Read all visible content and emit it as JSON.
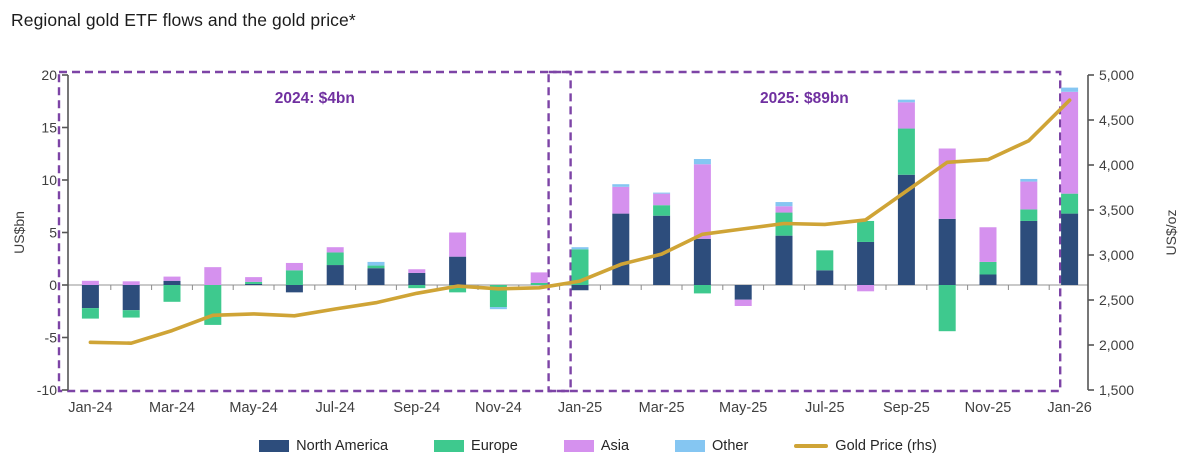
{
  "page": {
    "title": "Regional gold ETF flows and the gold price*"
  },
  "chart_data": {
    "type": "bar",
    "subtype": "stacked monthly bar chart with secondary-axis line overlay",
    "title": "Regional gold ETF flows and the gold price*",
    "categories": [
      "Jan-24",
      "Feb-24",
      "Mar-24",
      "Apr-24",
      "May-24",
      "Jun-24",
      "Jul-24",
      "Aug-24",
      "Sep-24",
      "Oct-24",
      "Nov-24",
      "Dec-24",
      "Jan-25",
      "Feb-25",
      "Mar-25",
      "Apr-25",
      "May-25",
      "Jun-25",
      "Jul-25",
      "Aug-25",
      "Sep-25",
      "Oct-25",
      "Nov-25",
      "Dec-25",
      "Jan-26"
    ],
    "x_labeled_ticks": [
      "Jan-24",
      "Mar-24",
      "May-24",
      "Jul-24",
      "Sep-24",
      "Nov-24",
      "Jan-25",
      "Mar-25",
      "May-25",
      "Jul-25",
      "Sep-25",
      "Nov-25",
      "Jan-26"
    ],
    "left_axis": {
      "label": "US$bn",
      "min": -10,
      "max": 20,
      "ticks": [
        "20",
        "15",
        "10",
        "5",
        "0",
        "-5",
        "-10"
      ]
    },
    "right_axis": {
      "label": "US$/oz",
      "min": 1500,
      "max": 5000,
      "ticks": [
        "5,000",
        "4,500",
        "4,000",
        "3,500",
        "3,000",
        "2,500",
        "2,000",
        "1,500"
      ]
    },
    "series": [
      {
        "name": "North America",
        "color": "#2d4d7c",
        "values": [
          -2.2,
          -2.4,
          0.4,
          0,
          0.1,
          -0.7,
          1.9,
          1.6,
          1.15,
          2.7,
          0,
          0,
          -0.5,
          6.8,
          6.6,
          4.4,
          -1.4,
          4.7,
          1.4,
          4.1,
          10.5,
          6.3,
          1.0,
          6.1,
          6.8
        ]
      },
      {
        "name": "Europe",
        "color": "#3ec98e",
        "values": [
          -1.0,
          -0.7,
          -1.6,
          -3.8,
          0.2,
          1.4,
          1.2,
          0.25,
          -0.3,
          -0.7,
          -2.1,
          0.2,
          3.4,
          0,
          1.0,
          -0.8,
          0,
          2.2,
          1.9,
          2.0,
          4.4,
          -4.4,
          1.2,
          1.1,
          1.9
        ]
      },
      {
        "name": "Asia",
        "color": "#d591ee",
        "values": [
          0.4,
          0.35,
          0.4,
          1.7,
          0.45,
          0.7,
          0.5,
          0,
          0.35,
          2.3,
          0,
          1.0,
          0,
          2.55,
          1.1,
          7.1,
          -0.6,
          0.6,
          0,
          -0.6,
          2.5,
          6.7,
          3.3,
          2.65,
          9.7
        ]
      },
      {
        "name": "Other",
        "color": "#85c6f2",
        "values": [
          0,
          0,
          0,
          0,
          0,
          0,
          0,
          0.35,
          0,
          0,
          -0.2,
          0,
          0.2,
          0.25,
          0.1,
          0.5,
          0,
          0.4,
          0,
          0,
          0.25,
          0,
          0,
          0.25,
          0.4
        ]
      }
    ],
    "line_series": {
      "name": "Gold Price (rhs)",
      "color": "#cfa436",
      "axis": "right",
      "values": [
        2030,
        2020,
        2160,
        2330,
        2345,
        2325,
        2400,
        2470,
        2575,
        2655,
        2625,
        2635,
        2710,
        2895,
        3010,
        3230,
        3290,
        3350,
        3340,
        3390,
        3710,
        4030,
        4060,
        4270,
        4720
      ]
    },
    "annotations": [
      {
        "text": "2024: $4bn",
        "color": "#7030a0",
        "box_color": "#7d44a6",
        "from_month": "Jan-24",
        "to_month": "Dec-24"
      },
      {
        "text": "2025: $89bn",
        "color": "#7030a0",
        "box_color": "#7d44a6",
        "from_month": "Jan-25",
        "to_month": "Dec-25"
      }
    ],
    "grid": "none (zero baseline only)",
    "legend_position": "bottom center",
    "styles": {
      "axis_color": "#555555",
      "tick_text_color": "#3f3f3f",
      "zero_line_color": "#a9a9a9",
      "month_tick_color": "#8c8c8c"
    }
  }
}
